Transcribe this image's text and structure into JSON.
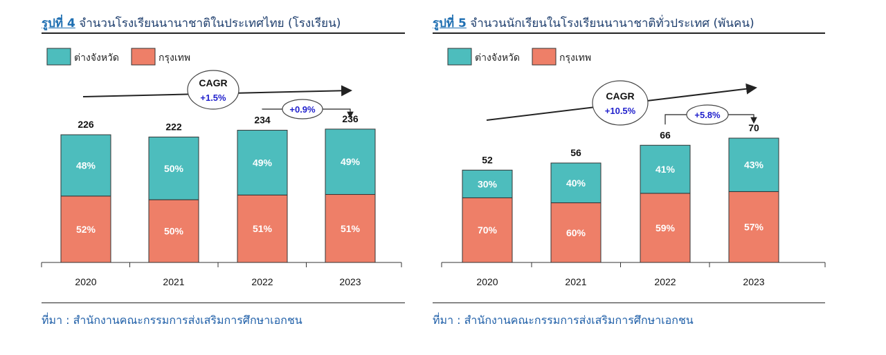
{
  "colors": {
    "province": "#4dbdbd",
    "bangkok": "#ee7f68",
    "cagr_text": "#1f1fcc"
  },
  "figures": [
    {
      "title_num": "รูปที่ 4",
      "title_text": " จำนวนโรงเรียนนานาชาติในประเทศไทย (โรงเรียน)",
      "source": "ที่มา : สำนักงานคณะกรรมการส่งเสริมการศึกษาเอกชน"
    },
    {
      "title_num": "รูปที่ 5",
      "title_text": " จำนวนนักเรียนในโรงเรียนนานาชาติทั่วประเทศ (พันคน)",
      "source": "ที่มา : สำนักงานคณะกรรมการส่งเสริมการศึกษาเอกชน"
    }
  ],
  "chart_data": [
    {
      "type": "bar",
      "stacked": true,
      "categories": [
        "2020",
        "2021",
        "2022",
        "2023"
      ],
      "totals": [
        226,
        222,
        234,
        236
      ],
      "ylim": [
        0,
        330
      ],
      "series": [
        {
          "name": "กรุงเทพ",
          "pct_labels": [
            "52%",
            "50%",
            "51%",
            "51%"
          ],
          "shares": [
            0.52,
            0.5,
            0.51,
            0.51
          ]
        },
        {
          "name": "ต่างจังหวัด",
          "pct_labels": [
            "48%",
            "50%",
            "49%",
            "49%"
          ],
          "shares": [
            0.48,
            0.5,
            0.49,
            0.49
          ]
        }
      ],
      "cagr_label": "CAGR",
      "cagr_value": "+1.5%",
      "growth_label": "+0.9%"
    },
    {
      "type": "bar",
      "stacked": true,
      "categories": [
        "2020",
        "2021",
        "2022",
        "2023"
      ],
      "totals": [
        52,
        56,
        66,
        70
      ],
      "ylim": [
        0,
        105
      ],
      "series": [
        {
          "name": "กรุงเทพ",
          "pct_labels": [
            "70%",
            "60%",
            "59%",
            "57%"
          ],
          "shares": [
            0.7,
            0.6,
            0.59,
            0.57
          ]
        },
        {
          "name": "ต่างจังหวัด",
          "pct_labels": [
            "30%",
            "40%",
            "41%",
            "43%"
          ],
          "shares": [
            0.3,
            0.4,
            0.41,
            0.43
          ]
        }
      ],
      "cagr_label": "CAGR",
      "cagr_value": "+10.5%",
      "growth_label": "+5.8%"
    }
  ]
}
